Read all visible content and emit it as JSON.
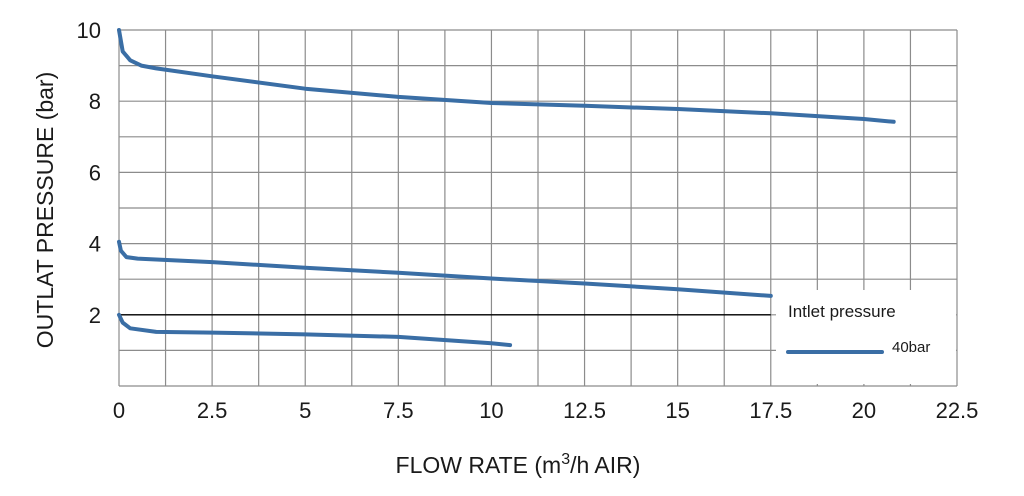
{
  "chart_data": {
    "type": "line",
    "xlabel": "FLOW RATE (m3/h AIR)",
    "xlabel_main": "FLOW RATE (m",
    "xlabel_sup": "3",
    "xlabel_tail": "/h AIR)",
    "ylabel": "OUTLAT PRESSURE (bar)",
    "xlim": [
      0,
      22.5
    ],
    "ylim": [
      0,
      10
    ],
    "x_ticks": [
      "0",
      "2.5",
      "5",
      "7.5",
      "10",
      "12.5",
      "15",
      "17.5",
      "20",
      "22.5"
    ],
    "y_ticks": [
      "2",
      "4",
      "6",
      "8",
      "10"
    ],
    "grid": true,
    "legend_title": "Intlet pressure",
    "legend": [
      {
        "label": "40bar",
        "color": "#3a6ea5"
      }
    ],
    "reference_line": {
      "y": 2,
      "x_end": 17.5,
      "color": "#000000"
    },
    "series": [
      {
        "color": "#3a6ea5",
        "points": [
          [
            0,
            10
          ],
          [
            0.1,
            9.4
          ],
          [
            0.3,
            9.15
          ],
          [
            0.6,
            9.0
          ],
          [
            1,
            8.92
          ],
          [
            2.5,
            8.7
          ],
          [
            5,
            8.35
          ],
          [
            7.5,
            8.12
          ],
          [
            10,
            7.95
          ],
          [
            12.5,
            7.87
          ],
          [
            15,
            7.78
          ],
          [
            17.5,
            7.66
          ],
          [
            20,
            7.5
          ],
          [
            20.8,
            7.42
          ]
        ]
      },
      {
        "color": "#3a6ea5",
        "points": [
          [
            0,
            4.05
          ],
          [
            0.05,
            3.8
          ],
          [
            0.2,
            3.62
          ],
          [
            0.5,
            3.58
          ],
          [
            2.5,
            3.48
          ],
          [
            5,
            3.32
          ],
          [
            7.5,
            3.18
          ],
          [
            10,
            3.02
          ],
          [
            12.5,
            2.88
          ],
          [
            15,
            2.72
          ],
          [
            17.5,
            2.53
          ]
        ]
      },
      {
        "color": "#3a6ea5",
        "points": [
          [
            0,
            2.0
          ],
          [
            0.1,
            1.78
          ],
          [
            0.3,
            1.62
          ],
          [
            1,
            1.52
          ],
          [
            2.5,
            1.5
          ],
          [
            5,
            1.45
          ],
          [
            7.5,
            1.38
          ],
          [
            10,
            1.2
          ],
          [
            10.5,
            1.15
          ]
        ]
      }
    ]
  }
}
